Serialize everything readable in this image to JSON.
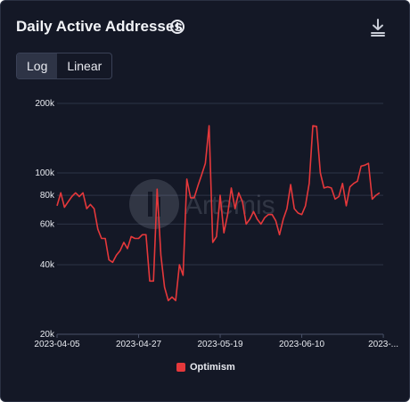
{
  "header": {
    "title": "Daily Active Addresses",
    "info_icon": "info-icon",
    "download_icon": "download-icon"
  },
  "scale_toggle": {
    "options": [
      "Log",
      "Linear"
    ],
    "selected": "Log"
  },
  "watermark": "Artemis",
  "colors": {
    "background": "#141826",
    "series": "#e5383b",
    "grid": "#2c3347",
    "text": "#e8eaf0"
  },
  "chart_data": {
    "type": "line",
    "title": "Daily Active Addresses",
    "y_scale": "log",
    "ylim": [
      20000,
      200000
    ],
    "y_ticks": [
      20000,
      40000,
      60000,
      80000,
      100000,
      200000
    ],
    "y_tick_labels": [
      "20k",
      "40k",
      "60k",
      "80k",
      "100k",
      "200k"
    ],
    "x_tick_labels": [
      "2023-04-05",
      "2023-04-27",
      "2023-05-19",
      "2023-06-10",
      "2023-..."
    ],
    "grid": true,
    "legend_position": "bottom",
    "series": [
      {
        "name": "Optimism",
        "color": "#e5383b",
        "x": [
          "2023-04-05",
          "2023-04-06",
          "2023-04-07",
          "2023-04-08",
          "2023-04-09",
          "2023-04-10",
          "2023-04-11",
          "2023-04-12",
          "2023-04-13",
          "2023-04-14",
          "2023-04-15",
          "2023-04-16",
          "2023-04-17",
          "2023-04-18",
          "2023-04-19",
          "2023-04-20",
          "2023-04-21",
          "2023-04-22",
          "2023-04-23",
          "2023-04-24",
          "2023-04-25",
          "2023-04-26",
          "2023-04-27",
          "2023-04-28",
          "2023-04-29",
          "2023-04-30",
          "2023-05-01",
          "2023-05-02",
          "2023-05-03",
          "2023-05-04",
          "2023-05-05",
          "2023-05-06",
          "2023-05-07",
          "2023-05-08",
          "2023-05-09",
          "2023-05-10",
          "2023-05-11",
          "2023-05-12",
          "2023-05-13",
          "2023-05-14",
          "2023-05-15",
          "2023-05-16",
          "2023-05-17",
          "2023-05-18",
          "2023-05-19",
          "2023-05-20",
          "2023-05-21",
          "2023-05-22",
          "2023-05-23",
          "2023-05-24",
          "2023-05-25",
          "2023-05-26",
          "2023-05-27",
          "2023-05-28",
          "2023-05-29",
          "2023-05-30",
          "2023-05-31",
          "2023-06-01",
          "2023-06-02",
          "2023-06-03",
          "2023-06-04",
          "2023-06-05",
          "2023-06-06",
          "2023-06-07",
          "2023-06-08",
          "2023-06-09",
          "2023-06-10",
          "2023-06-11",
          "2023-06-12",
          "2023-06-13",
          "2023-06-14",
          "2023-06-15",
          "2023-06-16",
          "2023-06-17",
          "2023-06-18",
          "2023-06-19",
          "2023-06-20",
          "2023-06-21",
          "2023-06-22",
          "2023-06-23",
          "2023-06-24",
          "2023-06-25",
          "2023-06-26",
          "2023-06-27",
          "2023-06-28",
          "2023-06-29",
          "2023-06-30",
          "2023-07-01"
        ],
        "values": [
          72000,
          82000,
          71000,
          75000,
          79000,
          82000,
          79000,
          82000,
          70000,
          73000,
          70000,
          57000,
          52000,
          52000,
          42000,
          41000,
          44000,
          46000,
          50000,
          47000,
          53000,
          52000,
          52000,
          54000,
          54000,
          34000,
          34000,
          85000,
          44000,
          32000,
          28000,
          29000,
          28000,
          40000,
          36000,
          94000,
          78000,
          78000,
          88000,
          98000,
          110000,
          160000,
          50000,
          53000,
          80000,
          55000,
          66000,
          86000,
          70000,
          82000,
          75000,
          60000,
          63000,
          68000,
          63000,
          60000,
          64000,
          66000,
          66000,
          62000,
          54000,
          63000,
          70000,
          89000,
          70000,
          67000,
          66000,
          72000,
          90000,
          160000,
          159000,
          100000,
          86000,
          87000,
          86000,
          77000,
          79000,
          90000,
          72000,
          87000,
          90000,
          92000,
          107000,
          108000,
          110000,
          77000,
          80000,
          82000
        ]
      }
    ]
  }
}
